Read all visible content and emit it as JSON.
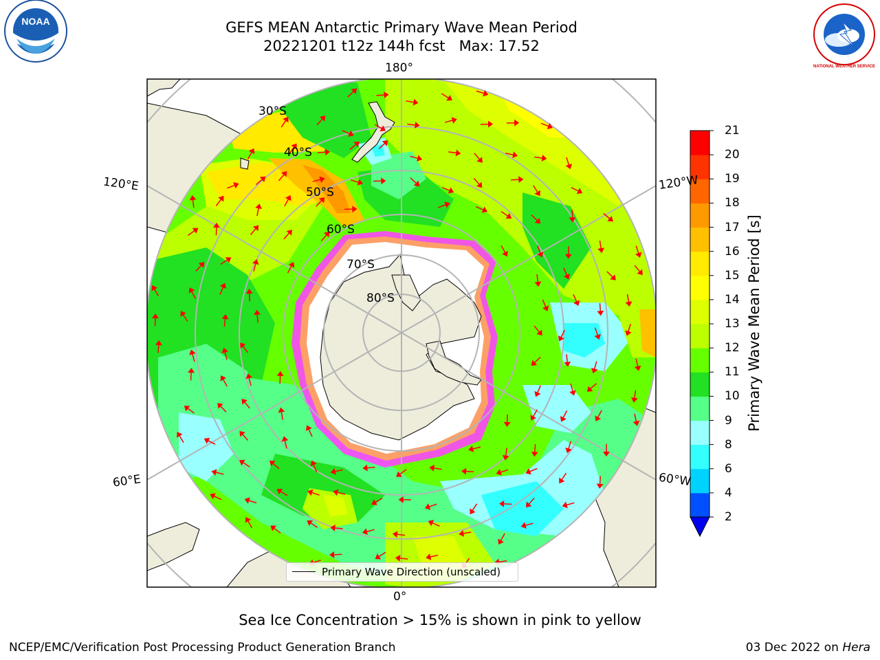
{
  "header": {
    "title_line1": "GEFS MEAN Antarctic Primary Wave Mean Period",
    "title_line2": "20221201 t12z 144h fcst   Max: 17.52"
  },
  "logos": {
    "left": {
      "name": "noaa-logo",
      "text": "NOAA"
    },
    "right": {
      "name": "national-weather-service-logo",
      "text": "NATIONAL WEATHER SERVICE"
    }
  },
  "map": {
    "projection": "south-polar-stereographic",
    "longitude_labels": {
      "top": "180°",
      "bottom": "0°",
      "left_upper": "120°E",
      "left_lower": "60°E",
      "right_upper": "120°W",
      "right_lower": "60°W"
    },
    "latitude_labels": [
      "30°S",
      "40°S",
      "50°S",
      "60°S",
      "70°S",
      "80°S"
    ],
    "legend": "Primary Wave Direction (unscaled)",
    "colors": {
      "land": "#eeecdb",
      "sea_ice": "#ffffff",
      "ice_edge": "#ff44ff",
      "arrows": "#ff0000",
      "grid": "#b4b4b4"
    }
  },
  "colorbar": {
    "label": "Primary Wave Mean Period [s]",
    "ticks": [
      "2",
      "4",
      "6",
      "8",
      "9",
      "10",
      "11",
      "12",
      "13",
      "14",
      "15",
      "16",
      "17",
      "18",
      "19",
      "20",
      "21"
    ],
    "colors": [
      "#0050ff",
      "#00d2ff",
      "#33ffff",
      "#99ffff",
      "#55ff88",
      "#22e022",
      "#66ff00",
      "#bbff00",
      "#ddff00",
      "#ffff00",
      "#ffea00",
      "#ffc000",
      "#ff9900",
      "#ff6600",
      "#ff3300",
      "#ff0000"
    ],
    "extend_min_color": "#0000ee"
  },
  "subtitle": "Sea Ice Concentration > 15% is shown in pink to yellow",
  "footer": {
    "left": "NCEP/EMC/Verification Post Processing Product Generation Branch",
    "right_date": "03 Dec 2022 on ",
    "right_host": "Hera"
  }
}
